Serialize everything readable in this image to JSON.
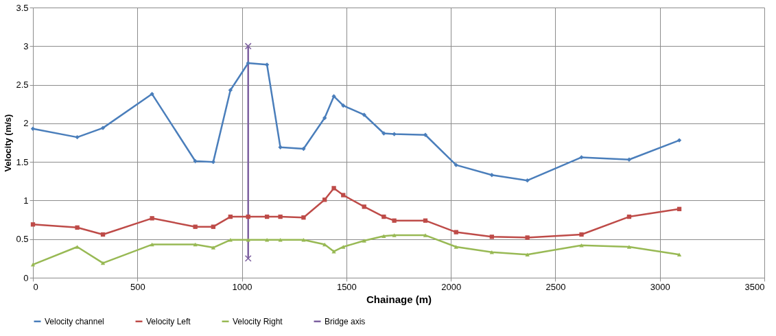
{
  "chart_data": {
    "type": "line",
    "xlabel": "Chainage (m)",
    "ylabel": "Velocity (m/s)",
    "xlim": [
      0,
      3500
    ],
    "xticks": [
      0,
      500,
      1000,
      1500,
      2000,
      2500,
      3000,
      3500
    ],
    "ylim": [
      0,
      3.5
    ],
    "yticks": [
      0,
      0.5,
      1,
      1.5,
      2,
      2.5,
      3,
      3.5
    ],
    "grid": true,
    "legend": "bottom",
    "line_style": "solid",
    "x": [
      0,
      212,
      335,
      570,
      777,
      863,
      945,
      1030,
      1120,
      1184,
      1295,
      1396,
      1440,
      1485,
      1585,
      1679,
      1729,
      1878,
      2025,
      2196,
      2366,
      2625,
      2853,
      3093
    ],
    "series": [
      {
        "name": "Velocity channel",
        "color": "#4a7ebb",
        "marker": "diamond",
        "values": [
          1.93,
          1.82,
          1.94,
          2.38,
          1.51,
          1.5,
          2.43,
          2.78,
          2.76,
          1.69,
          1.67,
          2.07,
          2.35,
          2.23,
          2.11,
          1.87,
          1.86,
          1.85,
          1.46,
          1.33,
          1.26,
          1.56,
          1.53,
          1.78
        ]
      },
      {
        "name": "Velocity Left",
        "color": "#be4b48",
        "marker": "square",
        "values": [
          0.69,
          0.65,
          0.56,
          0.77,
          0.66,
          0.66,
          0.79,
          0.79,
          0.79,
          0.79,
          0.78,
          1.01,
          1.16,
          1.07,
          0.92,
          0.79,
          0.74,
          0.74,
          0.59,
          0.53,
          0.52,
          0.56,
          0.79,
          0.89
        ]
      },
      {
        "name": "Velocity Right",
        "color": "#98b954",
        "marker": "triangle",
        "values": [
          0.17,
          0.4,
          0.19,
          0.43,
          0.43,
          0.39,
          0.49,
          0.49,
          0.49,
          0.49,
          0.49,
          0.43,
          0.34,
          0.4,
          0.48,
          0.54,
          0.55,
          0.55,
          0.4,
          0.33,
          0.3,
          0.42,
          0.4,
          0.3
        ]
      },
      {
        "name": "Bridge axis",
        "color": "#7d60a0",
        "marker": "cross",
        "x": [
          1030,
          1030
        ],
        "values": [
          0.25,
          3.0
        ]
      }
    ]
  }
}
